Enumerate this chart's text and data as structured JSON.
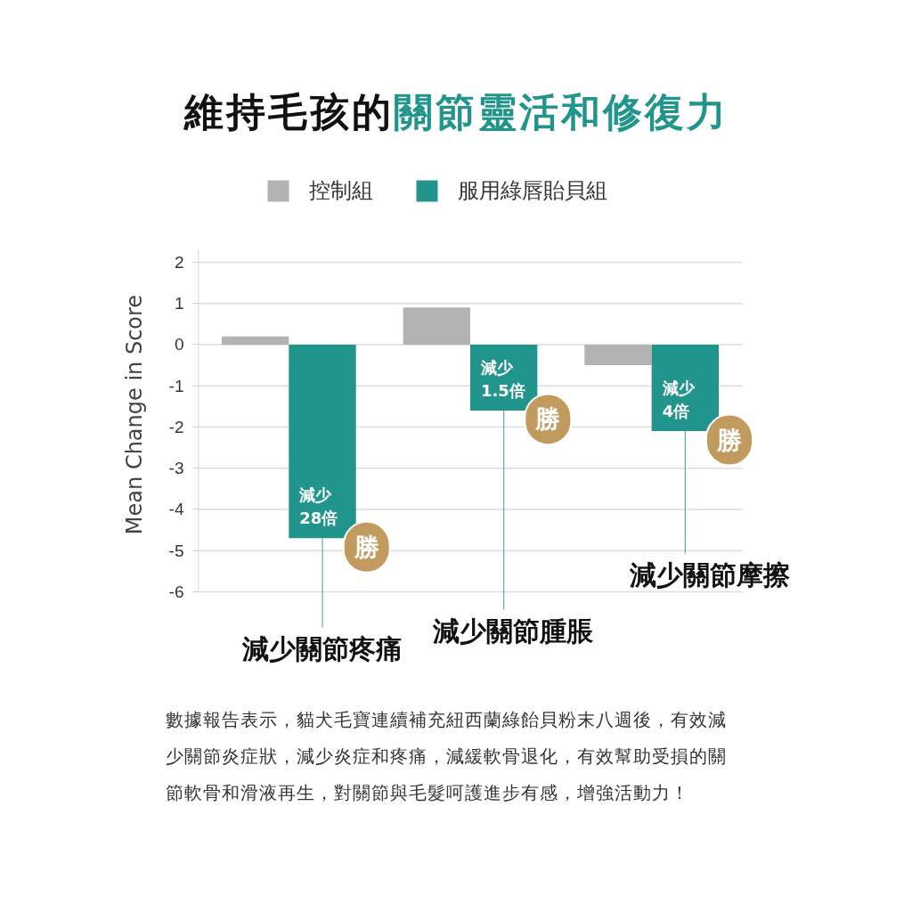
{
  "chart_data": {
    "type": "bar",
    "title": "維持毛孩的關節靈活和修復力",
    "ylabel": "Mean Change in Score",
    "categories": [
      "減少關節疼痛",
      "減少關節腫脹",
      "減少關節摩擦"
    ],
    "series": [
      {
        "name": "控制組",
        "color": "#b3b3b3",
        "values": [
          0.2,
          0.9,
          -0.5
        ]
      },
      {
        "name": "服用綠唇貽貝組",
        "color": "#21958b",
        "values": [
          -4.7,
          -1.6,
          -2.1
        ],
        "value_labels": [
          "減少\n28倍",
          "減少\n1.5倍",
          "減少\n4倍"
        ]
      }
    ],
    "ylim": [
      -6,
      2.3
    ],
    "yticks": [
      -6,
      -5,
      -4,
      -3,
      -2,
      -1,
      0,
      1,
      2
    ],
    "grid": "y",
    "legend": "top",
    "annotations": [
      {
        "text": "勝",
        "x": "減少關節疼痛",
        "y": -4.7
      },
      {
        "text": "勝",
        "x": "減少關節腫脹",
        "y": -1.6
      },
      {
        "text": "勝",
        "x": "減少關節摩擦",
        "y": -2.1
      },
      "數據報告表示，貓犬毛寶連續補充紐西蘭綠飴貝粉末八週後，有效減少關節炎症狀，減少炎症和疼痛，減緩軟骨退化，有效幫助受損的關節軟骨和滑液再生，對關節與毛髮呵護進步有感，增強活動力！"
    ]
  }
}
